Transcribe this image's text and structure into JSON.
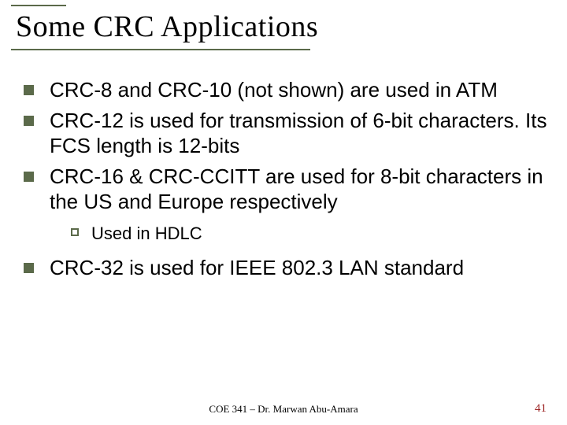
{
  "colors": {
    "accent": "#5b6a4a",
    "pagenum": "#9a1f1f",
    "text": "#000000",
    "background": "#ffffff"
  },
  "title": "Some CRC Applications",
  "bullets": [
    {
      "level": 1,
      "text": "CRC-8 and CRC-10 (not shown) are used in ATM"
    },
    {
      "level": 1,
      "text": "CRC-12 is used for transmission of 6-bit characters. Its FCS length is 12-bits"
    },
    {
      "level": 1,
      "text": "CRC-16 & CRC-CCITT are used for 8-bit characters in the US and Europe respectively"
    },
    {
      "level": 2,
      "text": "Used in HDLC"
    },
    {
      "level": 1,
      "text": "CRC-32 is used for IEEE 802.3 LAN standard"
    }
  ],
  "footer": {
    "center": "COE 341 – Dr. Marwan Abu-Amara",
    "page": "41"
  }
}
